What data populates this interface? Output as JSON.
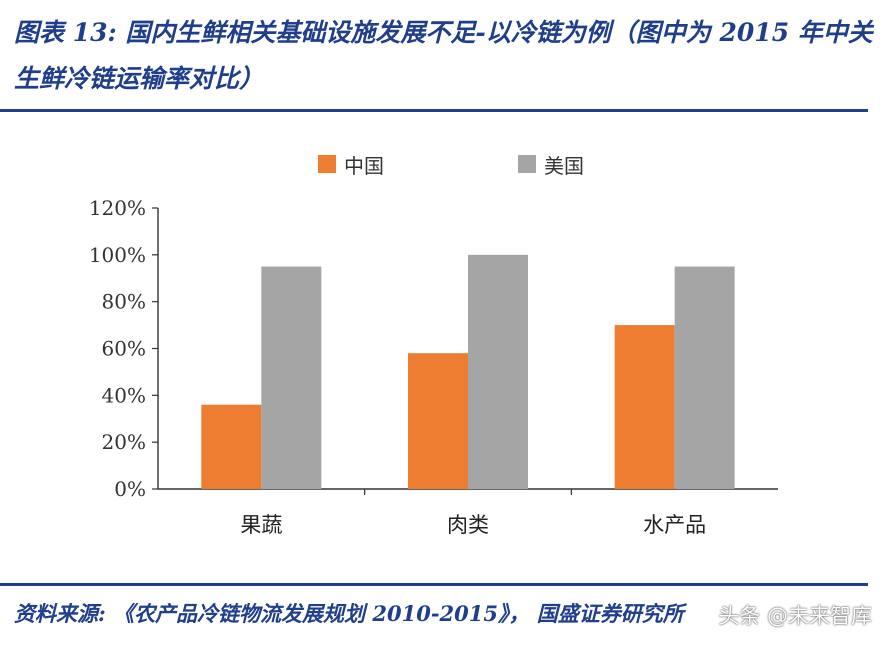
{
  "header": {
    "title": "图表 13:  国内生鲜相关基础设施发展不足-以冷链为例（图中为 2015 年中关生鲜冷链运输率对比）"
  },
  "footer": {
    "source": "资料来源:  《农产品冷链物流发展规划 2010-2015》， 国盛证券研究所",
    "watermark": "头条 @未来智库"
  },
  "colors": {
    "china": "#ed7d31",
    "usa": "#a5a5a5",
    "accent": "#1f3f8c"
  },
  "chart_data": {
    "type": "bar",
    "categories": [
      "果蔬",
      "肉类",
      "水产品"
    ],
    "series": [
      {
        "name": "中国",
        "values": [
          36,
          58,
          70
        ]
      },
      {
        "name": "美国",
        "values": [
          95,
          100,
          95
        ]
      }
    ],
    "ylim": [
      0,
      120
    ],
    "yticks": [
      "0%",
      "20%",
      "40%",
      "60%",
      "80%",
      "100%",
      "120%"
    ],
    "grid": false,
    "legend_position": "top"
  }
}
